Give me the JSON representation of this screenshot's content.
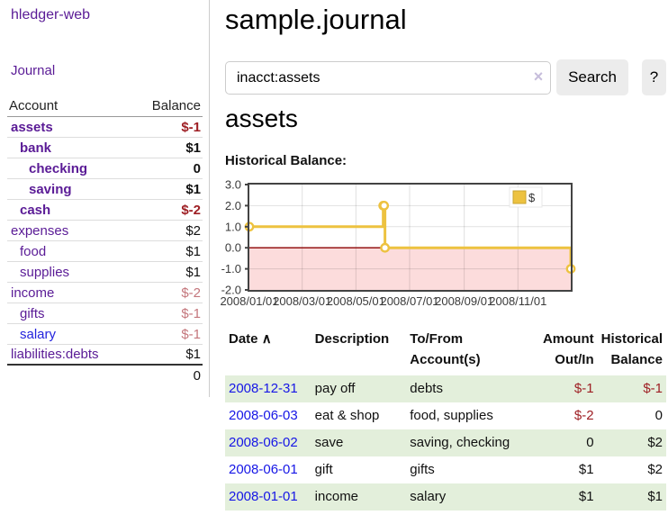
{
  "colors": {
    "purple_link": "#5a1b96",
    "blue_link": "#1616e6",
    "negative_strong": "#9e1f24",
    "negative_light": "#c4767c",
    "row_stripe_green": "#e3efdb",
    "chart_line_yellow": "#edc240",
    "chart_negative_region": "#fcdcdc",
    "chart_zero_line": "#8b0000",
    "chart_border": "#434343"
  },
  "icons": {
    "sort_asc": "∧",
    "clear": "×"
  },
  "sidebar": {
    "title": "hledger-web",
    "journal_link": "Journal",
    "table": {
      "headers": {
        "account": "Account",
        "balance": "Balance"
      },
      "rows": [
        {
          "account": "assets",
          "level": 1,
          "bold": true,
          "balance": "$-1",
          "balance_style": "neg-strong",
          "link_style": "purple"
        },
        {
          "account": "bank",
          "level": 2,
          "bold": true,
          "balance": "$1",
          "balance_style": "",
          "link_style": "purple"
        },
        {
          "account": "checking",
          "level": 3,
          "bold": true,
          "balance": "0",
          "balance_style": "",
          "link_style": "purple"
        },
        {
          "account": "saving",
          "level": 3,
          "bold": true,
          "balance": "$1",
          "balance_style": "",
          "link_style": "purple"
        },
        {
          "account": "cash",
          "level": 2,
          "bold": true,
          "balance": "$-2",
          "balance_style": "neg-strong",
          "link_style": "purple"
        },
        {
          "account": "expenses",
          "level": 1,
          "bold": false,
          "balance": "$2",
          "balance_style": "",
          "link_style": "purple"
        },
        {
          "account": "food",
          "level": 2,
          "bold": false,
          "balance": "$1",
          "balance_style": "",
          "link_style": "purple"
        },
        {
          "account": "supplies",
          "level": 2,
          "bold": false,
          "balance": "$1",
          "balance_style": "",
          "link_style": "purple"
        },
        {
          "account": "income",
          "level": 1,
          "bold": false,
          "balance": "$-2",
          "balance_style": "neg-light",
          "link_style": "purple"
        },
        {
          "account": "gifts",
          "level": 2,
          "bold": false,
          "balance": "$-1",
          "balance_style": "neg-light",
          "link_style": "purple"
        },
        {
          "account": "salary",
          "level": 2,
          "bold": false,
          "balance": "$-1",
          "balance_style": "neg-light",
          "link_style": "blue"
        },
        {
          "account": "liabilities:debts",
          "level": 1,
          "bold": false,
          "balance": "$1",
          "balance_style": "",
          "link_style": "purple"
        }
      ],
      "total": "0"
    }
  },
  "header": {
    "title": "sample.journal"
  },
  "search": {
    "value": "inacct:assets",
    "button_label": "Search",
    "help_label": "?"
  },
  "account_page": {
    "title": "assets",
    "chart_label": "Historical Balance:"
  },
  "chart_data": {
    "type": "line",
    "step": true,
    "title": "Historical Balance:",
    "series": [
      {
        "name": "$",
        "color": "#edc240",
        "points": [
          [
            "2008-01-01",
            1
          ],
          [
            "2008-06-01",
            2
          ],
          [
            "2008-06-02",
            2
          ],
          [
            "2008-06-03",
            0
          ],
          [
            "2008-12-31",
            -1
          ]
        ]
      }
    ],
    "xrange": [
      "2008-01-01",
      "2008-12-31"
    ],
    "ylim": [
      -2,
      3
    ],
    "yticks": [
      3.0,
      2.0,
      1.0,
      0.0,
      -1.0,
      -2.0
    ],
    "xticks": [
      "2008/01/01",
      "2008/03/01",
      "2008/05/01",
      "2008/07/01",
      "2008/09/01",
      "2008/11/01"
    ],
    "grid": true,
    "legend_position": "top-right",
    "legend_label": "$",
    "negative_region": true
  },
  "transactions": {
    "headers": [
      {
        "label": "Date",
        "sorted": "asc",
        "align": "left"
      },
      {
        "label": "Description",
        "align": "left"
      },
      {
        "label": "To/From Account(s)",
        "align": "left"
      },
      {
        "label": "Amount Out/In",
        "align": "right"
      },
      {
        "label": "Historical Balance",
        "align": "right"
      }
    ],
    "rows": [
      {
        "date": "2008-12-31",
        "description": "pay off",
        "accounts": "debts",
        "amount": "$-1",
        "amount_neg": true,
        "balance": "$-1",
        "balance_neg": true,
        "striped": true
      },
      {
        "date": "2008-06-03",
        "description": "eat & shop",
        "accounts": "food, supplies",
        "amount": "$-2",
        "amount_neg": true,
        "balance": "0",
        "balance_neg": false,
        "striped": false
      },
      {
        "date": "2008-06-02",
        "description": "save",
        "accounts": "saving, checking",
        "amount": "0",
        "amount_neg": false,
        "balance": "$2",
        "balance_neg": false,
        "striped": true
      },
      {
        "date": "2008-06-01",
        "description": "gift",
        "accounts": "gifts",
        "amount": "$1",
        "amount_neg": false,
        "balance": "$2",
        "balance_neg": false,
        "striped": false
      },
      {
        "date": "2008-01-01",
        "description": "income",
        "accounts": "salary",
        "amount": "$1",
        "amount_neg": false,
        "balance": "$1",
        "balance_neg": false,
        "striped": true
      }
    ]
  }
}
